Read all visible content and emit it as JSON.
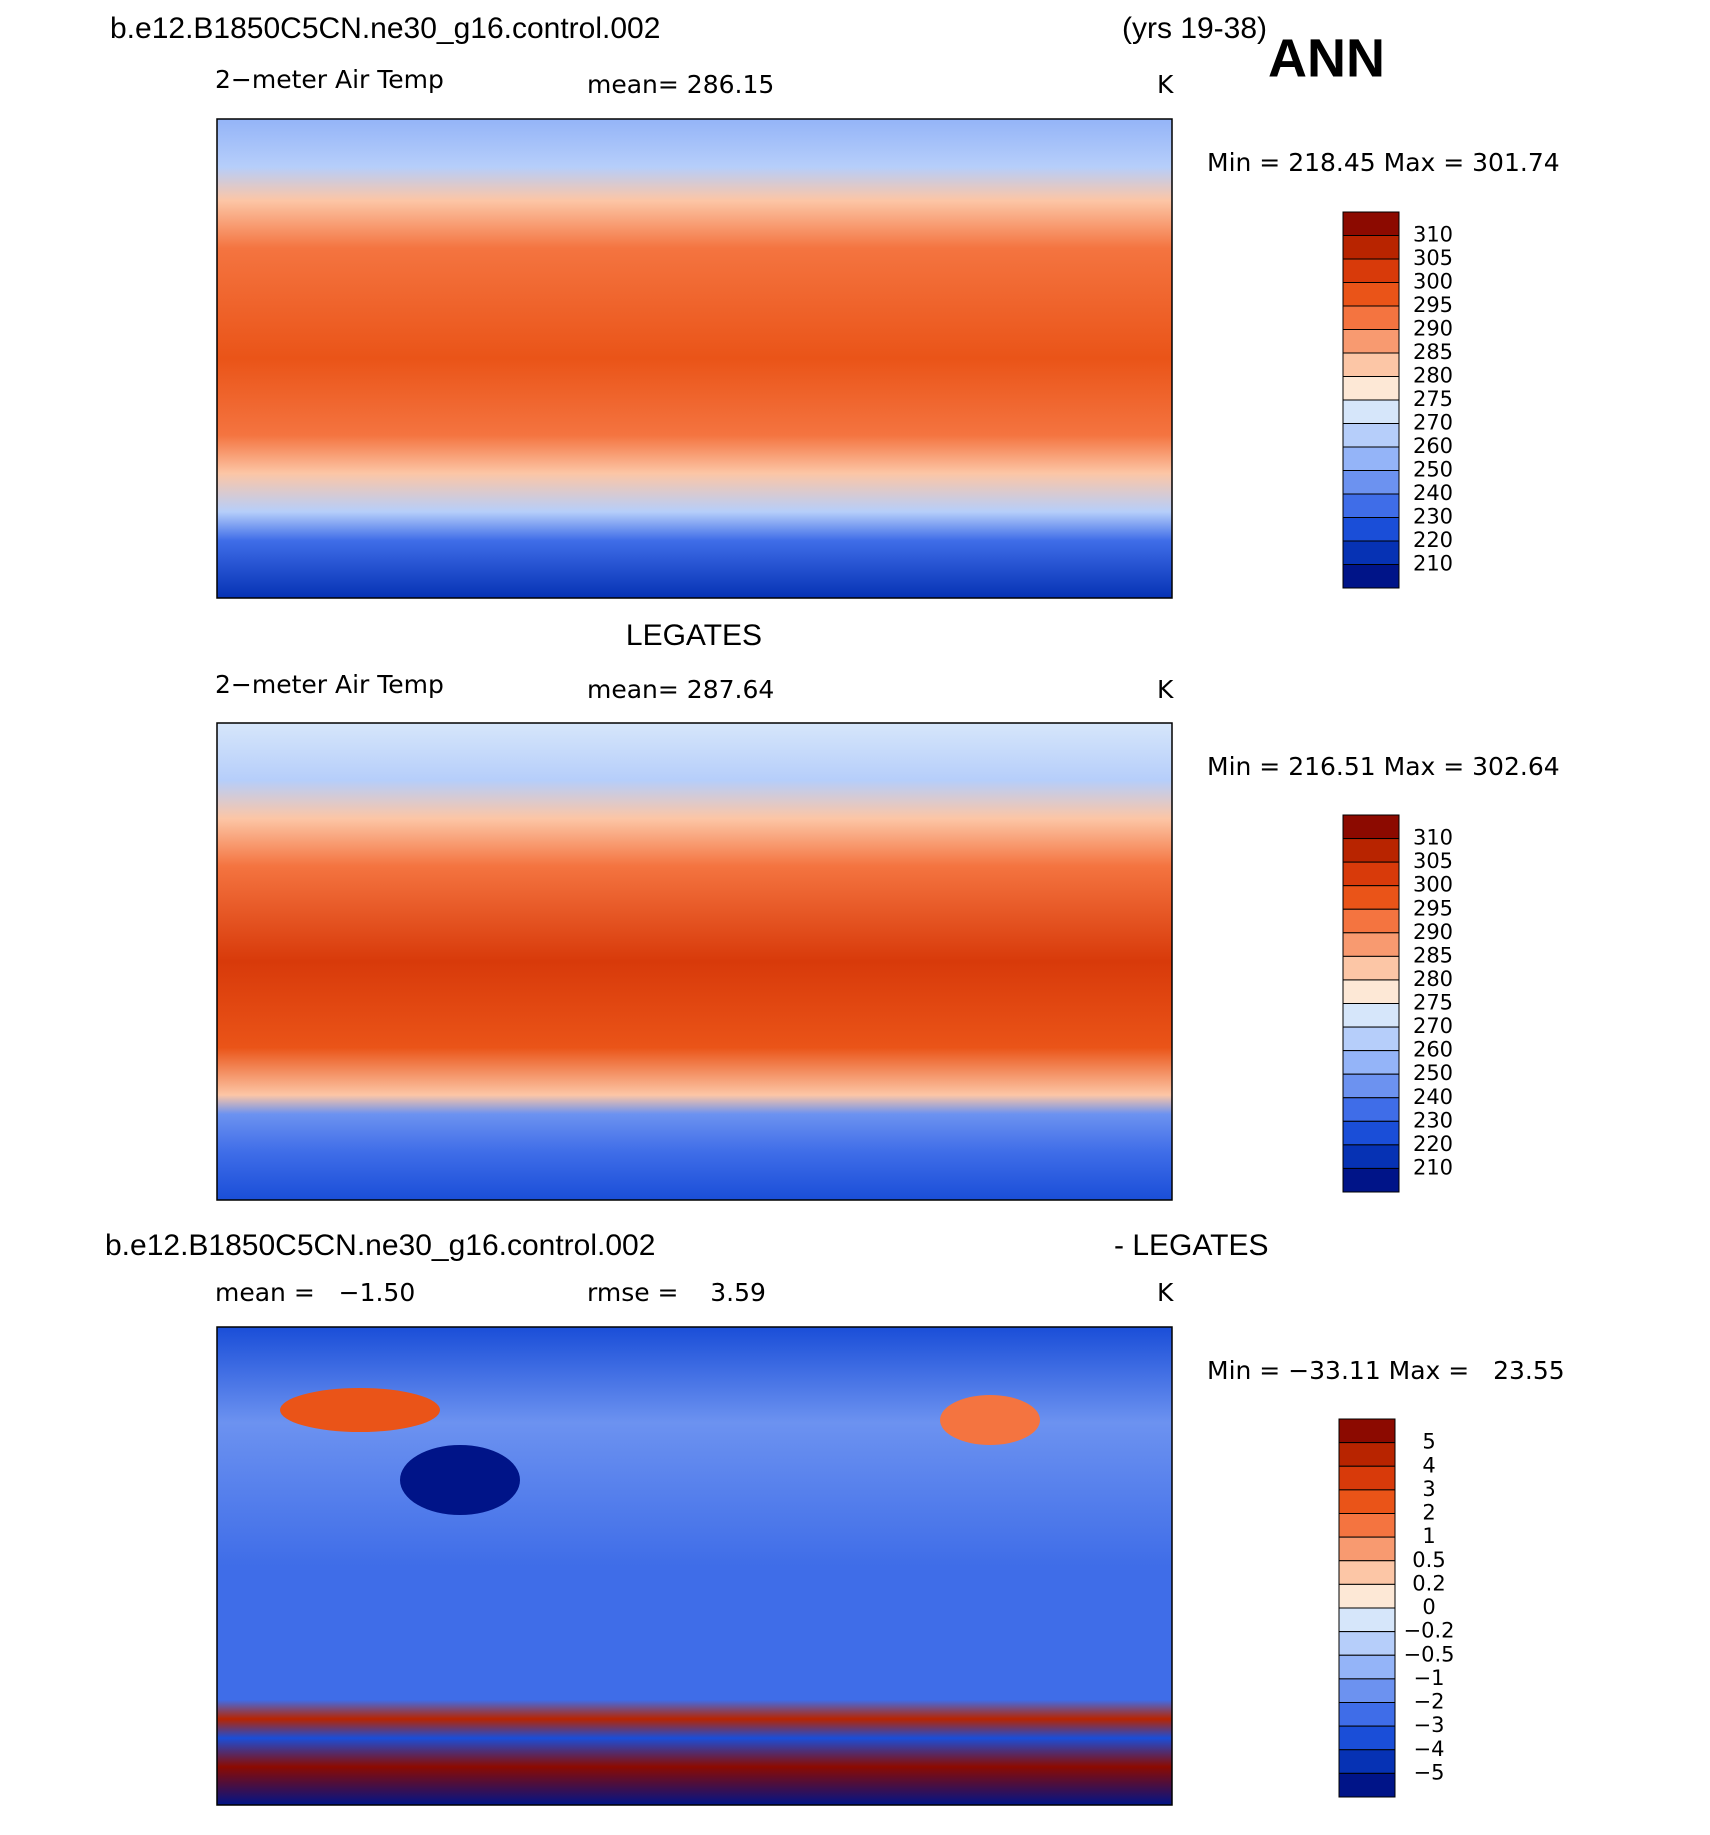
{
  "header": {
    "case": "b.e12.B1850C5CN.ne30_g16.control.002",
    "years": "(yrs 19-38)",
    "season": "ANN"
  },
  "panels": [
    {
      "variable": "2−meter Air Temp",
      "stat": "mean= 286.15",
      "units": "K",
      "range": "Min = 218.45 Max = 301.74",
      "colorbar": {
        "labels": [
          "310",
          "305",
          "300",
          "295",
          "290",
          "285",
          "280",
          "275",
          "270",
          "260",
          "250",
          "240",
          "230",
          "220",
          "210"
        ],
        "colors": [
          "#8c0a00",
          "#b82400",
          "#d83a0a",
          "#ea5418",
          "#f47440",
          "#f89a70",
          "#fcc6a6",
          "#fde8d6",
          "#d6e6fa",
          "#b6cefa",
          "#94b4f8",
          "#6c92f0",
          "#3f6de8",
          "#1a4ed8",
          "#0632b4",
          "#001488"
        ]
      }
    },
    {
      "title": "LEGATES",
      "variable": "2−meter Air Temp",
      "stat": "mean= 287.64",
      "units": "K",
      "range": "Min = 216.51 Max = 302.64",
      "colorbar": {
        "labels": [
          "310",
          "305",
          "300",
          "295",
          "290",
          "285",
          "280",
          "275",
          "270",
          "260",
          "250",
          "240",
          "230",
          "220",
          "210"
        ],
        "colors": [
          "#8c0a00",
          "#b82400",
          "#d83a0a",
          "#ea5418",
          "#f47440",
          "#f89a70",
          "#fcc6a6",
          "#fde8d6",
          "#d6e6fa",
          "#b6cefa",
          "#94b4f8",
          "#6c92f0",
          "#3f6de8",
          "#1a4ed8",
          "#0632b4",
          "#001488"
        ]
      }
    },
    {
      "title": "b.e12.B1850C5CN.ne30_g16.control.002",
      "title_right": "- LEGATES",
      "stat": "mean =   −1.50",
      "stat2": "rmse =    3.59",
      "units": "K",
      "range": "Min = −33.11 Max =   23.55",
      "colorbar": {
        "labels": [
          "5",
          "4",
          "3",
          "2",
          "1",
          "0.5",
          "0.2",
          "0",
          "−0.2",
          "−0.5",
          "−1",
          "−2",
          "−3",
          "−4",
          "−5"
        ],
        "colors": [
          "#8c0a00",
          "#b82400",
          "#d83a0a",
          "#ea5418",
          "#f47440",
          "#f89a70",
          "#fcc6a6",
          "#fde8d6",
          "#d6e6fa",
          "#b6cefa",
          "#94b4f8",
          "#6c92f0",
          "#3f6de8",
          "#1a4ed8",
          "#0632b4",
          "#001488"
        ]
      }
    }
  ]
}
